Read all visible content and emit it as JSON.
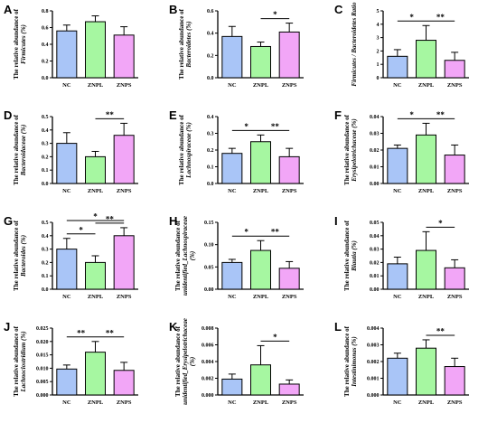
{
  "colors": {
    "NC": "#a9c5f7",
    "ZNPL": "#a6f7a1",
    "ZNPS": "#f2a6f7",
    "stroke": "#000000"
  },
  "chart_data": [
    {
      "type": "bar",
      "panel": "A",
      "categories": [
        "NC",
        "ZNPL",
        "ZNPS"
      ],
      "values": [
        0.56,
        0.67,
        0.51
      ],
      "errors": [
        0.07,
        0.07,
        0.1
      ],
      "ylabel_lines": [
        "The relative abundance of",
        "Firmicutes (%)"
      ],
      "ylim": [
        0,
        0.8
      ],
      "ticks": [
        "0.0",
        "0.2",
        "0.4",
        "0.6",
        "0.8"
      ],
      "significance": []
    },
    {
      "type": "bar",
      "panel": "B",
      "categories": [
        "NC",
        "ZNPL",
        "ZNPS"
      ],
      "values": [
        0.37,
        0.28,
        0.41
      ],
      "errors": [
        0.09,
        0.04,
        0.08
      ],
      "ylabel_lines": [
        "The relative abundance of",
        "Bacteroidetes (%)"
      ],
      "ylim": [
        0,
        0.6
      ],
      "ticks": [
        "0.0",
        "0.2",
        "0.4",
        "0.6"
      ],
      "significance": [
        {
          "from": 1,
          "to": 2,
          "label": "*"
        }
      ]
    },
    {
      "type": "bar",
      "panel": "C",
      "categories": [
        "NC",
        "ZNPL",
        "ZNPS"
      ],
      "values": [
        1.6,
        2.8,
        1.3
      ],
      "errors": [
        0.5,
        1.1,
        0.6
      ],
      "ylabel_lines": [
        "Firmicutes / Bacteroidetes Ratio"
      ],
      "ylim": [
        0,
        5
      ],
      "ticks": [
        "0",
        "1",
        "2",
        "3",
        "4",
        "5"
      ],
      "significance": [
        {
          "from": 0,
          "to": 1,
          "label": "*"
        },
        {
          "from": 1,
          "to": 2,
          "label": "**"
        }
      ]
    },
    {
      "type": "bar",
      "panel": "D",
      "categories": [
        "NC",
        "ZNPL",
        "ZNPS"
      ],
      "values": [
        0.3,
        0.2,
        0.36
      ],
      "errors": [
        0.08,
        0.04,
        0.09
      ],
      "ylabel_lines": [
        "The relative abundance of",
        "Bacteroidaceae (%)"
      ],
      "ylim": [
        0,
        0.5
      ],
      "ticks": [
        "0.0",
        "0.1",
        "0.2",
        "0.3",
        "0.4",
        "0.5"
      ],
      "significance": [
        {
          "from": 1,
          "to": 2,
          "label": "**"
        }
      ]
    },
    {
      "type": "bar",
      "panel": "E",
      "categories": [
        "NC",
        "ZNPL",
        "ZNPS"
      ],
      "values": [
        0.18,
        0.25,
        0.16
      ],
      "errors": [
        0.03,
        0.04,
        0.05
      ],
      "ylabel_lines": [
        "The relative abundance of",
        "Lachnospiraceae (%)"
      ],
      "ylim": [
        0,
        0.4
      ],
      "ticks": [
        "0.0",
        "0.1",
        "0.2",
        "0.3",
        "0.4"
      ],
      "significance": [
        {
          "from": 0,
          "to": 1,
          "label": "*"
        },
        {
          "from": 1,
          "to": 2,
          "label": "**"
        }
      ]
    },
    {
      "type": "bar",
      "panel": "F",
      "categories": [
        "NC",
        "ZNPL",
        "ZNPS"
      ],
      "values": [
        0.021,
        0.029,
        0.017
      ],
      "errors": [
        0.002,
        0.007,
        0.006
      ],
      "ylabel_lines": [
        "The relative abundance of",
        "Erysipelotrichaceae (%)"
      ],
      "ylim": [
        0,
        0.04
      ],
      "ticks": [
        "0.00",
        "0.01",
        "0.02",
        "0.03",
        "0.04"
      ],
      "significance": [
        {
          "from": 0,
          "to": 1,
          "label": "*"
        },
        {
          "from": 1,
          "to": 2,
          "label": "**"
        }
      ]
    },
    {
      "type": "bar",
      "panel": "G",
      "categories": [
        "NC",
        "ZNPL",
        "ZNPS"
      ],
      "values": [
        0.3,
        0.2,
        0.4
      ],
      "errors": [
        0.08,
        0.05,
        0.06
      ],
      "ylabel_lines": [
        "The relative abundance of",
        "Bacteroides (%)"
      ],
      "ylim": [
        0,
        0.5
      ],
      "ticks": [
        "0.0",
        "0.1",
        "0.2",
        "0.3",
        "0.4",
        "0.5"
      ],
      "significance": [
        {
          "from": 0,
          "to": 1,
          "label": "*"
        },
        {
          "from": 1,
          "to": 2,
          "label": "**"
        },
        {
          "from": 0,
          "to": 2,
          "label": "*"
        }
      ]
    },
    {
      "type": "bar",
      "panel": "H",
      "categories": [
        "NC",
        "ZNPL",
        "ZNPS"
      ],
      "values": [
        0.06,
        0.087,
        0.047
      ],
      "errors": [
        0.007,
        0.022,
        0.015
      ],
      "ylabel_lines": [
        "The relative abundance of",
        "unidentified_Lachnospiraceae",
        "(%)"
      ],
      "ylim": [
        0,
        0.15
      ],
      "ticks": [
        "0.00",
        "0.05",
        "0.10",
        "0.15"
      ],
      "significance": [
        {
          "from": 0,
          "to": 1,
          "label": "*"
        },
        {
          "from": 1,
          "to": 2,
          "label": "**"
        }
      ]
    },
    {
      "type": "bar",
      "panel": "I",
      "categories": [
        "NC",
        "ZNPL",
        "ZNPS"
      ],
      "values": [
        0.019,
        0.029,
        0.016
      ],
      "errors": [
        0.005,
        0.014,
        0.006
      ],
      "ylabel_lines": [
        "The relative abundance of",
        "Blautia (%)"
      ],
      "ylim": [
        0,
        0.05
      ],
      "ticks": [
        "0.00",
        "0.01",
        "0.02",
        "0.03",
        "0.04",
        "0.05"
      ],
      "significance": [
        {
          "from": 1,
          "to": 2,
          "label": "*"
        }
      ]
    },
    {
      "type": "bar",
      "panel": "J",
      "categories": [
        "NC",
        "ZNPL",
        "ZNPS"
      ],
      "values": [
        0.0097,
        0.016,
        0.0092
      ],
      "errors": [
        0.0015,
        0.004,
        0.003
      ],
      "ylabel_lines": [
        "The relative abundance of",
        "Lachnoclostridium (%)"
      ],
      "ylim": [
        0,
        0.025
      ],
      "ticks": [
        "0.000",
        "0.005",
        "0.010",
        "0.015",
        "0.020",
        "0.025"
      ],
      "significance": [
        {
          "from": 0,
          "to": 1,
          "label": "**"
        },
        {
          "from": 1,
          "to": 2,
          "label": "**"
        }
      ]
    },
    {
      "type": "bar",
      "panel": "K",
      "categories": [
        "NC",
        "ZNPL",
        "ZNPS"
      ],
      "values": [
        0.0019,
        0.0036,
        0.0013
      ],
      "errors": [
        0.0006,
        0.0023,
        0.0005
      ],
      "ylabel_lines": [
        "The relative abundance of",
        "unidentified_Erysipelotrichaceae",
        "(%)"
      ],
      "ylim": [
        0,
        0.008
      ],
      "ticks": [
        "0.000",
        "0.002",
        "0.004",
        "0.006",
        "0.008"
      ],
      "significance": [
        {
          "from": 1,
          "to": 2,
          "label": "*"
        }
      ]
    },
    {
      "type": "bar",
      "panel": "L",
      "categories": [
        "NC",
        "ZNPL",
        "ZNPS"
      ],
      "values": [
        0.0022,
        0.0028,
        0.0017
      ],
      "errors": [
        0.0003,
        0.0005,
        0.0005
      ],
      "ylabel_lines": [
        "The relative abundance of",
        "Intestinimonas (%)"
      ],
      "ylim": [
        0,
        0.004
      ],
      "ticks": [
        "0.000",
        "0.001",
        "0.002",
        "0.003",
        "0.004"
      ],
      "significance": [
        {
          "from": 1,
          "to": 2,
          "label": "**"
        }
      ]
    }
  ]
}
